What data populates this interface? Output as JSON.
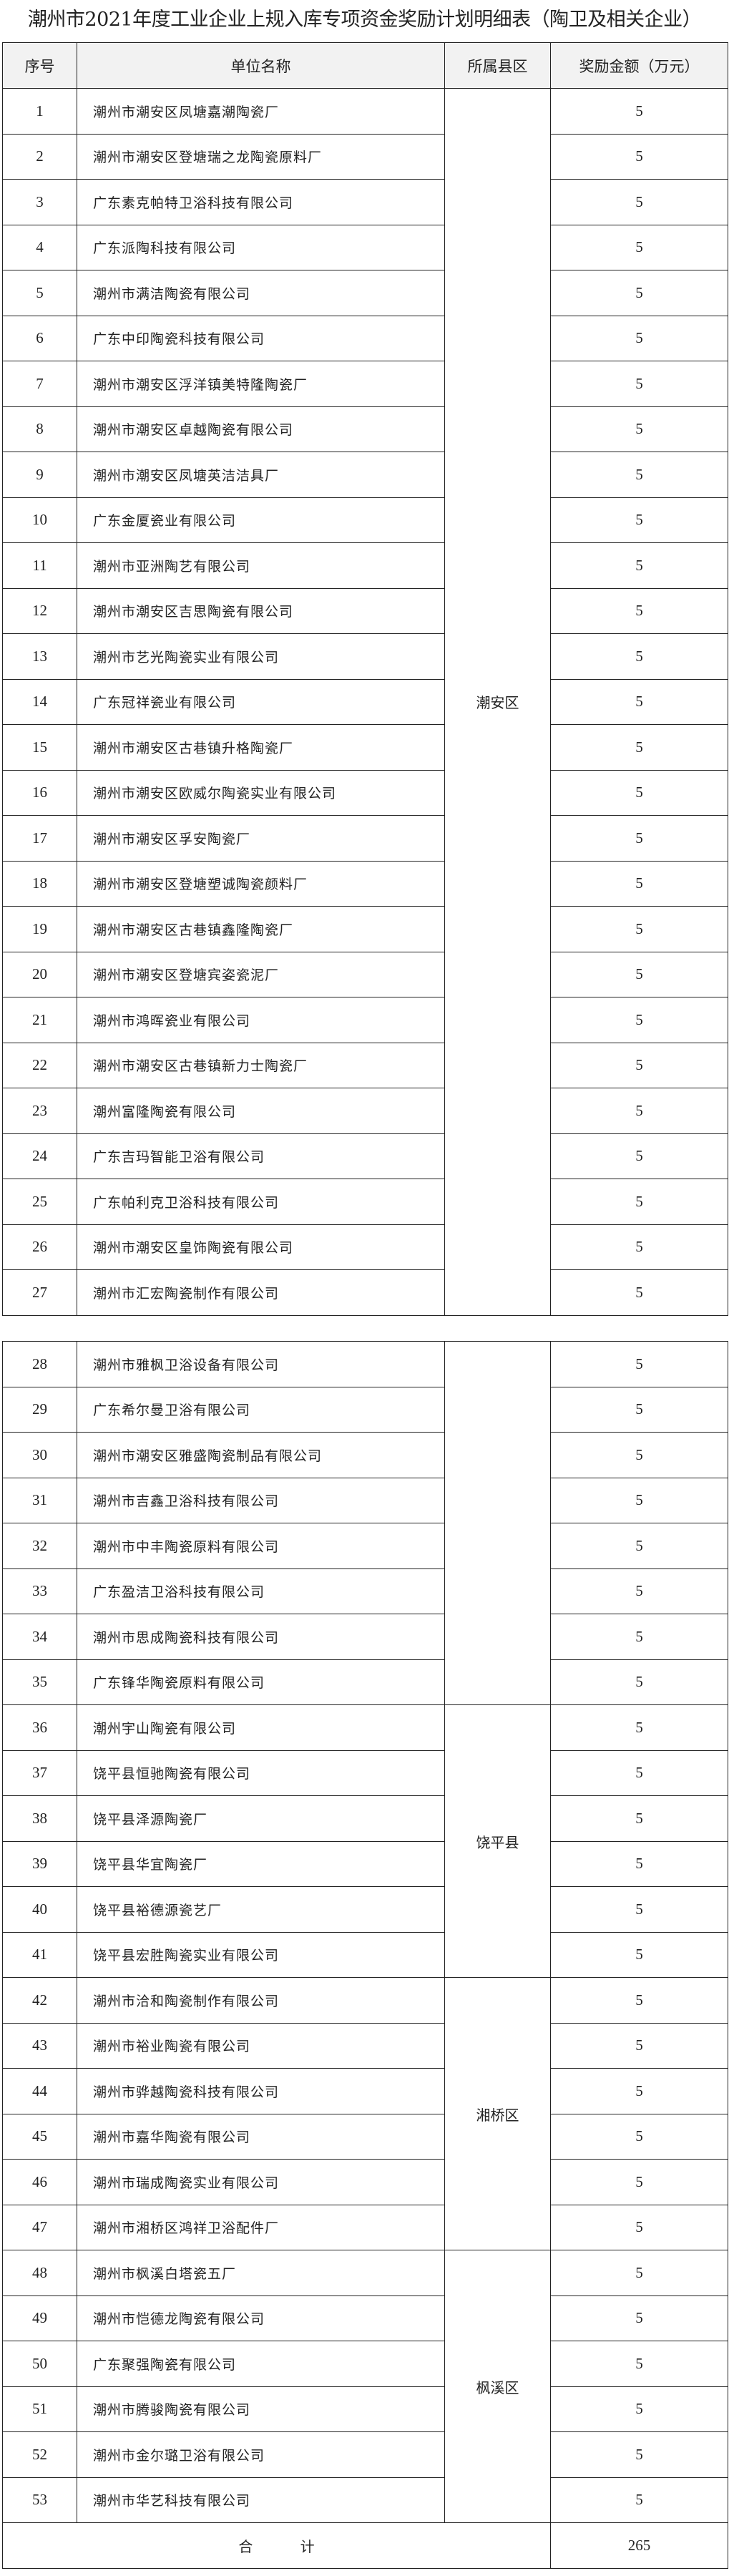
{
  "title": "潮州市2021年度工业企业上规入库专项资金奖励计划明细表（陶卫及相关企业）",
  "headers": {
    "no": "序号",
    "name": "单位名称",
    "district": "所属县区",
    "amount": "奖励金额（万元）"
  },
  "rows": [
    {
      "no": "1",
      "name": "潮州市潮安区凤塘嘉潮陶瓷厂",
      "amount": "5"
    },
    {
      "no": "2",
      "name": "潮州市潮安区登塘瑞之龙陶瓷原料厂",
      "amount": "5"
    },
    {
      "no": "3",
      "name": "广东素克帕特卫浴科技有限公司",
      "amount": "5"
    },
    {
      "no": "4",
      "name": "广东派陶科技有限公司",
      "amount": "5"
    },
    {
      "no": "5",
      "name": "潮州市满洁陶瓷有限公司",
      "amount": "5"
    },
    {
      "no": "6",
      "name": "广东中印陶瓷科技有限公司",
      "amount": "5"
    },
    {
      "no": "7",
      "name": "潮州市潮安区浮洋镇美特隆陶瓷厂",
      "amount": "5"
    },
    {
      "no": "8",
      "name": "潮州市潮安区卓越陶瓷有限公司",
      "amount": "5"
    },
    {
      "no": "9",
      "name": "潮州市潮安区凤塘英洁洁具厂",
      "amount": "5"
    },
    {
      "no": "10",
      "name": "广东金厦瓷业有限公司",
      "amount": "5"
    },
    {
      "no": "11",
      "name": "潮州市亚洲陶艺有限公司",
      "amount": "5"
    },
    {
      "no": "12",
      "name": "潮州市潮安区吉思陶瓷有限公司",
      "amount": "5"
    },
    {
      "no": "13",
      "name": "潮州市艺光陶瓷实业有限公司",
      "amount": "5"
    },
    {
      "no": "14",
      "name": "广东冠祥瓷业有限公司",
      "amount": "5"
    },
    {
      "no": "15",
      "name": "潮州市潮安区古巷镇升格陶瓷厂",
      "amount": "5"
    },
    {
      "no": "16",
      "name": "潮州市潮安区欧威尔陶瓷实业有限公司",
      "amount": "5"
    },
    {
      "no": "17",
      "name": "潮州市潮安区孚安陶瓷厂",
      "amount": "5"
    },
    {
      "no": "18",
      "name": "潮州市潮安区登塘塑诚陶瓷颜料厂",
      "amount": "5"
    },
    {
      "no": "19",
      "name": "潮州市潮安区古巷镇鑫隆陶瓷厂",
      "amount": "5"
    },
    {
      "no": "20",
      "name": "潮州市潮安区登塘宾姿瓷泥厂",
      "amount": "5"
    },
    {
      "no": "21",
      "name": "潮州市鸿晖瓷业有限公司",
      "amount": "5"
    },
    {
      "no": "22",
      "name": "潮州市潮安区古巷镇新力士陶瓷厂",
      "amount": "5"
    },
    {
      "no": "23",
      "name": "潮州富隆陶瓷有限公司",
      "amount": "5"
    },
    {
      "no": "24",
      "name": "广东吉玛智能卫浴有限公司",
      "amount": "5"
    },
    {
      "no": "25",
      "name": "广东帕利克卫浴科技有限公司",
      "amount": "5"
    },
    {
      "no": "26",
      "name": "潮州市潮安区皇饰陶瓷有限公司",
      "amount": "5"
    },
    {
      "no": "27",
      "name": "潮州市汇宏陶瓷制作有限公司",
      "amount": "5"
    },
    {
      "no": "28",
      "name": "潮州市雅枫卫浴设备有限公司",
      "amount": "5"
    },
    {
      "no": "29",
      "name": "广东希尔曼卫浴有限公司",
      "amount": "5"
    },
    {
      "no": "30",
      "name": "潮州市潮安区雅盛陶瓷制品有限公司",
      "amount": "5"
    },
    {
      "no": "31",
      "name": "潮州市吉鑫卫浴科技有限公司",
      "amount": "5"
    },
    {
      "no": "32",
      "name": "潮州市中丰陶瓷原料有限公司",
      "amount": "5"
    },
    {
      "no": "33",
      "name": "广东盈洁卫浴科技有限公司",
      "amount": "5"
    },
    {
      "no": "34",
      "name": "潮州市思成陶瓷科技有限公司",
      "amount": "5"
    },
    {
      "no": "35",
      "name": "广东锋华陶瓷原料有限公司",
      "amount": "5"
    },
    {
      "no": "36",
      "name": "潮州宇山陶瓷有限公司",
      "amount": "5"
    },
    {
      "no": "37",
      "name": "饶平县恒驰陶瓷有限公司",
      "amount": "5"
    },
    {
      "no": "38",
      "name": "饶平县泽源陶瓷厂",
      "amount": "5"
    },
    {
      "no": "39",
      "name": "饶平县华宜陶瓷厂",
      "amount": "5"
    },
    {
      "no": "40",
      "name": "饶平县裕德源瓷艺厂",
      "amount": "5"
    },
    {
      "no": "41",
      "name": "饶平县宏胜陶瓷实业有限公司",
      "amount": "5"
    },
    {
      "no": "42",
      "name": "潮州市洽和陶瓷制作有限公司",
      "amount": "5"
    },
    {
      "no": "43",
      "name": "潮州市裕业陶瓷有限公司",
      "amount": "5"
    },
    {
      "no": "44",
      "name": "潮州市骅越陶瓷科技有限公司",
      "amount": "5"
    },
    {
      "no": "45",
      "name": "潮州市嘉华陶瓷有限公司",
      "amount": "5"
    },
    {
      "no": "46",
      "name": "潮州市瑞成陶瓷实业有限公司",
      "amount": "5"
    },
    {
      "no": "47",
      "name": "潮州市湘桥区鸿祥卫浴配件厂",
      "amount": "5"
    },
    {
      "no": "48",
      "name": "潮州市枫溪白塔瓷五厂",
      "amount": "5"
    },
    {
      "no": "49",
      "name": "潮州市恺德龙陶瓷有限公司",
      "amount": "5"
    },
    {
      "no": "50",
      "name": "广东聚强陶瓷有限公司",
      "amount": "5"
    },
    {
      "no": "51",
      "name": "潮州市腾骏陶瓷有限公司",
      "amount": "5"
    },
    {
      "no": "52",
      "name": "潮州市金尔璐卫浴有限公司",
      "amount": "5"
    },
    {
      "no": "53",
      "name": "潮州市华艺科技有限公司",
      "amount": "5"
    }
  ],
  "district_groups": [
    {
      "label": "潮安区",
      "from": 1,
      "to": 27
    },
    {
      "label": "",
      "from": 28,
      "to": 35
    },
    {
      "label": "饶平县",
      "from": 36,
      "to": 41
    },
    {
      "label": "湘桥区",
      "from": 42,
      "to": 47
    },
    {
      "label": "枫溪区",
      "from": 48,
      "to": 53
    }
  ],
  "total": {
    "label": "合 计",
    "amount": "265"
  }
}
